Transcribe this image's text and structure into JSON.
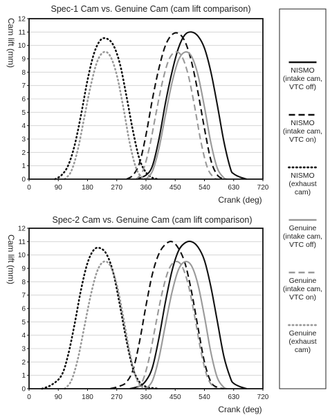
{
  "chart_data": [
    {
      "type": "line",
      "title": "Spec-1 Cam vs. Genuine Cam (cam lift comparison)",
      "xlabel": "Crank (deg)",
      "ylabel": "Cam lift (mm)",
      "xlim": [
        0,
        720
      ],
      "ylim": [
        0,
        12
      ],
      "xticks": [
        0,
        90,
        180,
        270,
        360,
        450,
        540,
        630,
        720
      ],
      "yticks": [
        0,
        1,
        2,
        3,
        4,
        5,
        6,
        7,
        8,
        9,
        10,
        11,
        12
      ],
      "grid": "horizontal",
      "series": [
        {
          "name": "NISMO (intake cam, VTC off)",
          "color": "#111111",
          "dash": "solid",
          "x": [
            330,
            360,
            380,
            400,
            420,
            440,
            460,
            480,
            500,
            520,
            540,
            560,
            580,
            600,
            620,
            630,
            650,
            670
          ],
          "y": [
            0,
            0.3,
            1.0,
            3.0,
            5.7,
            8.0,
            9.8,
            10.8,
            11.0,
            10.7,
            9.8,
            8.0,
            5.5,
            2.8,
            0.8,
            0.4,
            0.15,
            0
          ]
        },
        {
          "name": "NISMO (intake cam, VTC on)",
          "color": "#111111",
          "dash": "dashed",
          "x": [
            300,
            320,
            340,
            360,
            380,
            400,
            420,
            440,
            460,
            480,
            500,
            520,
            540,
            560,
            580,
            600
          ],
          "y": [
            0,
            0.3,
            1.2,
            3.3,
            6.0,
            8.3,
            10.0,
            10.8,
            10.9,
            10.3,
            8.8,
            6.5,
            3.8,
            1.4,
            0.3,
            0
          ]
        },
        {
          "name": "NISMO (exhaust cam)",
          "color": "#111111",
          "dash": "dotted",
          "x": [
            80,
            100,
            120,
            140,
            160,
            180,
            200,
            220,
            240,
            260,
            280,
            300,
            320,
            340,
            360,
            380,
            400
          ],
          "y": [
            0,
            0.3,
            1.0,
            2.5,
            4.8,
            7.4,
            9.4,
            10.4,
            10.5,
            10.0,
            8.6,
            6.2,
            3.6,
            1.5,
            0.5,
            0.1,
            0
          ]
        },
        {
          "name": "Genuine (intake cam, VTC off)",
          "color": "#999999",
          "dash": "solid",
          "x": [
            360,
            380,
            400,
            420,
            440,
            460,
            480,
            500,
            520,
            540,
            560,
            580,
            600,
            610
          ],
          "y": [
            0,
            0.6,
            2.3,
            4.8,
            7.2,
            8.9,
            9.5,
            9.2,
            7.8,
            5.4,
            2.7,
            0.8,
            0.1,
            0
          ]
        },
        {
          "name": "Genuine (intake cam, VTC on)",
          "color": "#999999",
          "dash": "dashed",
          "x": [
            330,
            350,
            370,
            390,
            410,
            430,
            450,
            470,
            490,
            510,
            530,
            550,
            570,
            580
          ],
          "y": [
            0,
            0.6,
            2.3,
            4.8,
            7.2,
            8.9,
            9.5,
            9.2,
            7.8,
            5.4,
            2.7,
            0.8,
            0.1,
            0
          ]
        },
        {
          "name": "Genuine (exhaust cam)",
          "color": "#999999",
          "dash": "dotted",
          "x": [
            110,
            130,
            150,
            170,
            190,
            210,
            230,
            250,
            270,
            290,
            310,
            330,
            350,
            370
          ],
          "y": [
            0,
            0.6,
            2.2,
            4.6,
            7.0,
            8.8,
            9.5,
            9.2,
            7.8,
            5.4,
            2.7,
            0.8,
            0.1,
            0
          ]
        }
      ]
    },
    {
      "type": "line",
      "title": "Spec-2 Cam vs. Genuine Cam (cam lift comparison)",
      "xlabel": "Crank (deg)",
      "ylabel": "Cam lift (mm)",
      "xlim": [
        0,
        720
      ],
      "ylim": [
        0,
        12
      ],
      "xticks": [
        0,
        90,
        180,
        270,
        360,
        450,
        540,
        630,
        720
      ],
      "yticks": [
        0,
        1,
        2,
        3,
        4,
        5,
        6,
        7,
        8,
        9,
        10,
        11,
        12
      ],
      "grid": "horizontal",
      "series": [
        {
          "name": "NISMO (intake cam, VTC off)",
          "color": "#111111",
          "dash": "solid",
          "x": [
            310,
            340,
            360,
            380,
            400,
            420,
            440,
            460,
            480,
            500,
            520,
            540,
            560,
            580,
            600,
            620,
            630,
            650,
            670
          ],
          "y": [
            0,
            0.2,
            0.6,
            1.6,
            3.8,
            6.5,
            8.8,
            10.3,
            10.9,
            11.0,
            10.6,
            9.6,
            7.6,
            5.0,
            2.4,
            0.8,
            0.4,
            0.15,
            0
          ]
        },
        {
          "name": "NISMO (intake cam, VTC on)",
          "color": "#111111",
          "dash": "dashed",
          "x": [
            250,
            280,
            300,
            320,
            340,
            360,
            380,
            400,
            420,
            440,
            460,
            480,
            500,
            520,
            540,
            560,
            580,
            600
          ],
          "y": [
            0,
            0.2,
            0.5,
            1.4,
            3.5,
            6.2,
            8.6,
            10.1,
            10.8,
            11.0,
            10.5,
            9.4,
            7.3,
            4.6,
            2.0,
            0.5,
            0.1,
            0
          ]
        },
        {
          "name": "NISMO (exhaust cam)",
          "color": "#111111",
          "dash": "dotted",
          "x": [
            40,
            70,
            100,
            120,
            140,
            160,
            180,
            200,
            220,
            240,
            260,
            280,
            300,
            320,
            340,
            360,
            380,
            400
          ],
          "y": [
            0,
            0.3,
            1.0,
            2.5,
            4.8,
            7.4,
            9.4,
            10.4,
            10.5,
            10.0,
            8.6,
            6.2,
            3.6,
            1.5,
            0.5,
            0.15,
            0.05,
            0
          ]
        },
        {
          "name": "Genuine (intake cam, VTC off)",
          "color": "#999999",
          "dash": "solid",
          "x": [
            360,
            380,
            400,
            420,
            440,
            460,
            480,
            500,
            520,
            540,
            560,
            580,
            600,
            610
          ],
          "y": [
            0,
            0.6,
            2.3,
            4.8,
            7.2,
            8.9,
            9.5,
            9.2,
            7.8,
            5.4,
            2.7,
            0.8,
            0.1,
            0
          ]
        },
        {
          "name": "Genuine (intake cam, VTC on)",
          "color": "#999999",
          "dash": "dashed",
          "x": [
            330,
            350,
            370,
            390,
            410,
            430,
            450,
            470,
            490,
            510,
            530,
            550,
            570,
            580
          ],
          "y": [
            0,
            0.6,
            2.3,
            4.8,
            7.2,
            8.9,
            9.5,
            9.2,
            7.8,
            5.4,
            2.7,
            0.8,
            0.1,
            0
          ]
        },
        {
          "name": "Genuine (exhaust cam)",
          "color": "#999999",
          "dash": "dotted",
          "x": [
            110,
            130,
            150,
            170,
            190,
            210,
            230,
            250,
            270,
            290,
            310,
            330,
            350,
            370
          ],
          "y": [
            0,
            0.6,
            2.2,
            4.6,
            7.0,
            8.8,
            9.5,
            9.2,
            7.8,
            5.4,
            2.7,
            0.8,
            0.1,
            0
          ]
        }
      ]
    }
  ],
  "legend": {
    "items": [
      {
        "lines": [
          "NISMO",
          "(intake cam,",
          "VTC off)"
        ],
        "color": "#111111",
        "dash": "solid"
      },
      {
        "lines": [
          "NISMO",
          "(intake cam,",
          "VTC on)"
        ],
        "color": "#111111",
        "dash": "dashed"
      },
      {
        "lines": [
          "NISMO",
          "(exhaust",
          "cam)"
        ],
        "color": "#111111",
        "dash": "dotted"
      },
      {
        "lines": [
          "Genuine",
          "(intake cam,",
          "VTC off)"
        ],
        "color": "#999999",
        "dash": "solid"
      },
      {
        "lines": [
          "Genuine",
          "(intake cam,",
          "VTC on)"
        ],
        "color": "#999999",
        "dash": "dashed"
      },
      {
        "lines": [
          "Genuine",
          "(exhaust",
          "cam)"
        ],
        "color": "#999999",
        "dash": "dotted"
      }
    ]
  }
}
